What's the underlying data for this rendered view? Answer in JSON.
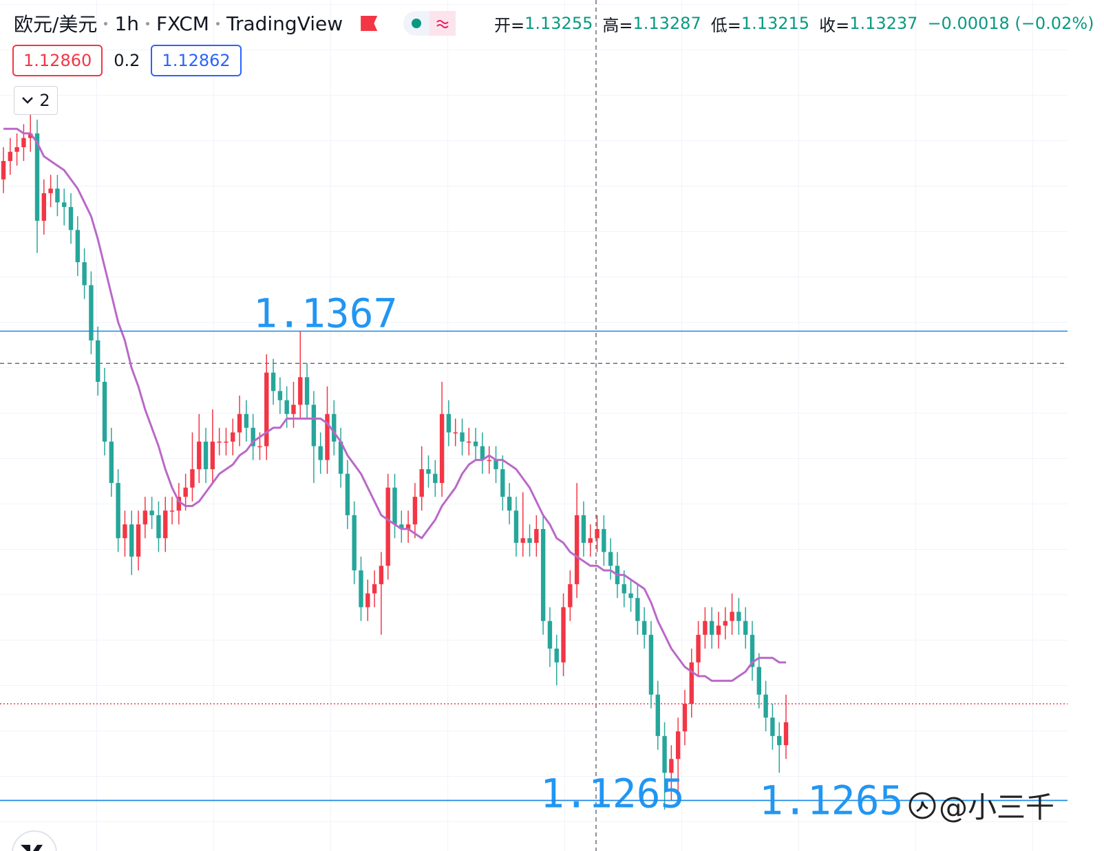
{
  "chart_data": {
    "type": "candlestick",
    "symbol": "欧元/美元",
    "interval": "1h",
    "exchange": "FXCM",
    "source": "TradingView",
    "ohlc_legend": [
      {
        "label": "开=",
        "value": "1.13255"
      },
      {
        "label": "高=",
        "value": "1.13287"
      },
      {
        "label": "低=",
        "value": "1.13215"
      },
      {
        "label": "收=",
        "value": "1.13237"
      }
    ],
    "change": "−0.00018 (−0.02%)",
    "bid": {
      "value": 1.1286,
      "label": "1.12860"
    },
    "spread": "0.2",
    "ask": "1.12862",
    "indicator_count": "2",
    "watermark": "@小三千",
    "ylim": [
      1.1254,
      1.1439
    ],
    "up_color": "#f23645",
    "down_color": "#26a69a",
    "crosshair_price": 1.136,
    "levels": [
      {
        "value": 1.1367,
        "label": "1.1367"
      },
      {
        "value": 1.1265,
        "label": "1.1265"
      },
      {
        "value": 1.1265,
        "label": "1.1265"
      }
    ],
    "open": [
      1.14,
      1.1404,
      1.1406,
      1.1407,
      1.1409,
      1.141,
      1.1391,
      1.1397,
      1.1398,
      1.1395,
      1.1394,
      1.1389,
      1.1382,
      1.1377,
      1.1365,
      1.1356,
      1.1343,
      1.1334,
      1.1322,
      1.1325,
      1.1318,
      1.1325,
      1.1328,
      1.1327,
      1.1322,
      1.1328,
      1.1328,
      1.1331,
      1.1333,
      1.1337,
      1.1343,
      1.1337,
      1.1343,
      1.1343,
      1.1343,
      1.1345,
      1.1349,
      1.1346,
      1.1342,
      1.1342,
      1.1358,
      1.1354,
      1.1352,
      1.1349,
      1.1351,
      1.1357,
      1.1351,
      1.1342,
      1.1339,
      1.1349,
      1.1343,
      1.1336,
      1.1327,
      1.1315,
      1.1307,
      1.131,
      1.1312,
      1.1316,
      1.1333,
      1.1325,
      1.1324,
      1.1325,
      1.1331,
      1.1337,
      1.1336,
      1.1334,
      1.1349,
      1.1345,
      1.1345,
      1.1343,
      1.1343,
      1.1342,
      1.1339,
      1.1339,
      1.1337,
      1.1331,
      1.1328,
      1.1321,
      1.1322,
      1.1321,
      1.1324,
      1.1304,
      1.1298,
      1.1295,
      1.1307,
      1.1312,
      1.1327,
      1.1321,
      1.1322,
      1.1324,
      1.1319,
      1.1316,
      1.1312,
      1.131,
      1.1309,
      1.1304,
      1.1301,
      1.1288,
      1.1279,
      1.1271,
      1.1274,
      1.128,
      1.1286,
      1.1295,
      1.1301,
      1.1304,
      1.1301,
      1.1303,
      1.1304,
      1.1306,
      1.1304,
      1.1301,
      1.1294,
      1.1288,
      1.1283,
      1.1279,
      1.1277
    ],
    "high": [
      1.1407,
      1.1409,
      1.141,
      1.1412,
      1.1417,
      1.1413,
      1.14,
      1.1401,
      1.1401,
      1.1398,
      1.1397,
      1.1392,
      1.1385,
      1.138,
      1.1368,
      1.1359,
      1.1346,
      1.1337,
      1.1328,
      1.1328,
      1.1328,
      1.1331,
      1.1331,
      1.133,
      1.1331,
      1.1331,
      1.1334,
      1.1336,
      1.1345,
      1.1349,
      1.1346,
      1.135,
      1.1346,
      1.1346,
      1.1348,
      1.1353,
      1.1352,
      1.1349,
      1.1345,
      1.1362,
      1.1361,
      1.1357,
      1.1355,
      1.1356,
      1.1367,
      1.136,
      1.1354,
      1.1345,
      1.1355,
      1.1352,
      1.1346,
      1.1339,
      1.133,
      1.1318,
      1.1313,
      1.1315,
      1.1319,
      1.1336,
      1.1336,
      1.1328,
      1.1328,
      1.1334,
      1.1342,
      1.134,
      1.1339,
      1.1356,
      1.1352,
      1.1348,
      1.1348,
      1.1346,
      1.1346,
      1.1345,
      1.1342,
      1.1342,
      1.134,
      1.1334,
      1.1331,
      1.1332,
      1.1325,
      1.1327,
      1.1327,
      1.1307,
      1.1301,
      1.131,
      1.1315,
      1.1334,
      1.133,
      1.1325,
      1.1327,
      1.1327,
      1.1322,
      1.1319,
      1.1315,
      1.1313,
      1.1312,
      1.1307,
      1.1304,
      1.1291,
      1.1282,
      1.1277,
      1.1283,
      1.1289,
      1.1298,
      1.1304,
      1.1307,
      1.1307,
      1.1306,
      1.1307,
      1.131,
      1.1309,
      1.1307,
      1.1304,
      1.1297,
      1.1291,
      1.1286,
      1.1282,
      1.1288
    ],
    "low": [
      1.1397,
      1.1401,
      1.1403,
      1.1404,
      1.1406,
      1.1384,
      1.1388,
      1.1394,
      1.1392,
      1.139,
      1.1386,
      1.1379,
      1.1374,
      1.1362,
      1.1353,
      1.134,
      1.1331,
      1.1319,
      1.1318,
      1.1314,
      1.1315,
      1.1322,
      1.1324,
      1.1319,
      1.1319,
      1.1325,
      1.1325,
      1.1328,
      1.133,
      1.1334,
      1.1334,
      1.1334,
      1.134,
      1.134,
      1.134,
      1.1342,
      1.1343,
      1.1339,
      1.1339,
      1.1339,
      1.1351,
      1.1349,
      1.1346,
      1.1346,
      1.1348,
      1.1348,
      1.1334,
      1.1336,
      1.1336,
      1.134,
      1.1333,
      1.1324,
      1.1312,
      1.1304,
      1.1304,
      1.1307,
      1.1301,
      1.1313,
      1.1322,
      1.1321,
      1.1321,
      1.1322,
      1.1328,
      1.1333,
      1.1331,
      1.1331,
      1.1342,
      1.1342,
      1.134,
      1.134,
      1.1339,
      1.1336,
      1.1336,
      1.1334,
      1.1328,
      1.1325,
      1.1318,
      1.1318,
      1.1318,
      1.1318,
      1.1301,
      1.1294,
      1.129,
      1.1292,
      1.1304,
      1.1309,
      1.1318,
      1.1318,
      1.1319,
      1.1316,
      1.1313,
      1.1309,
      1.1307,
      1.1306,
      1.1301,
      1.1298,
      1.1285,
      1.1276,
      1.1263,
      1.1265,
      1.1266,
      1.1277,
      1.1283,
      1.1292,
      1.1298,
      1.1298,
      1.1298,
      1.13,
      1.1301,
      1.1301,
      1.1298,
      1.1291,
      1.1285,
      1.128,
      1.1276,
      1.1271,
      1.1274
    ],
    "close": [
      1.1404,
      1.1406,
      1.1407,
      1.1409,
      1.141,
      1.1391,
      1.1397,
      1.1398,
      1.1395,
      1.1394,
      1.1389,
      1.1382,
      1.1377,
      1.1365,
      1.1356,
      1.1343,
      1.1334,
      1.1322,
      1.1325,
      1.1318,
      1.1325,
      1.1328,
      1.1327,
      1.1322,
      1.1328,
      1.1328,
      1.1331,
      1.1333,
      1.1337,
      1.1343,
      1.1337,
      1.1343,
      1.1343,
      1.1343,
      1.1345,
      1.1349,
      1.1346,
      1.1342,
      1.1342,
      1.1358,
      1.1354,
      1.1352,
      1.1349,
      1.1351,
      1.1357,
      1.1351,
      1.1342,
      1.1339,
      1.1349,
      1.1343,
      1.1336,
      1.1327,
      1.1315,
      1.1307,
      1.131,
      1.1312,
      1.1316,
      1.1333,
      1.1325,
      1.1324,
      1.1325,
      1.1331,
      1.1337,
      1.1336,
      1.1334,
      1.1349,
      1.1345,
      1.1345,
      1.1343,
      1.1343,
      1.1342,
      1.1339,
      1.1339,
      1.1337,
      1.1331,
      1.1328,
      1.1321,
      1.1322,
      1.1321,
      1.1324,
      1.1304,
      1.1298,
      1.1295,
      1.1307,
      1.1312,
      1.1327,
      1.1321,
      1.1322,
      1.1324,
      1.1319,
      1.1316,
      1.1312,
      1.131,
      1.1309,
      1.1304,
      1.1301,
      1.1288,
      1.1279,
      1.1271,
      1.1274,
      1.128,
      1.1286,
      1.1295,
      1.1301,
      1.1304,
      1.1301,
      1.1303,
      1.1304,
      1.1306,
      1.1304,
      1.1301,
      1.1294,
      1.1288,
      1.1283,
      1.1279,
      1.1277,
      1.1282
    ],
    "ma": {
      "color": "#ba68c8",
      "values": [
        1.1411,
        1.1411,
        1.1411,
        1.141,
        1.141,
        1.1408,
        1.1405,
        1.1404,
        1.1403,
        1.1402,
        1.14,
        1.1398,
        1.1395,
        1.1392,
        1.1387,
        1.1381,
        1.1375,
        1.1369,
        1.1365,
        1.1359,
        1.1355,
        1.135,
        1.1346,
        1.1342,
        1.1337,
        1.1333,
        1.133,
        1.1329,
        1.1329,
        1.133,
        1.1332,
        1.1334,
        1.1336,
        1.1337,
        1.1338,
        1.134,
        1.1341,
        1.1343,
        1.1344,
        1.1345,
        1.1346,
        1.1346,
        1.1348,
        1.1348,
        1.1348,
        1.1348,
        1.1348,
        1.1348,
        1.1347,
        1.1345,
        1.1343,
        1.134,
        1.1338,
        1.1336,
        1.1333,
        1.133,
        1.1327,
        1.1326,
        1.1325,
        1.1324,
        1.1324,
        1.1323,
        1.1322,
        1.1324,
        1.1326,
        1.1329,
        1.1331,
        1.1333,
        1.1336,
        1.1338,
        1.1339,
        1.1339,
        1.134,
        1.1339,
        1.1339,
        1.1338,
        1.1337,
        1.1335,
        1.1333,
        1.133,
        1.1327,
        1.1325,
        1.1322,
        1.1321,
        1.1319,
        1.1318,
        1.1317,
        1.1316,
        1.1316,
        1.1315,
        1.1315,
        1.1314,
        1.1314,
        1.1313,
        1.1312,
        1.1311,
        1.1308,
        1.1304,
        1.1301,
        1.1298,
        1.1296,
        1.1294,
        1.1293,
        1.1292,
        1.1292,
        1.1291,
        1.1291,
        1.1291,
        1.1291,
        1.1292,
        1.1293,
        1.1295,
        1.1296,
        1.1296,
        1.1296,
        1.1295,
        1.1295
      ]
    }
  }
}
